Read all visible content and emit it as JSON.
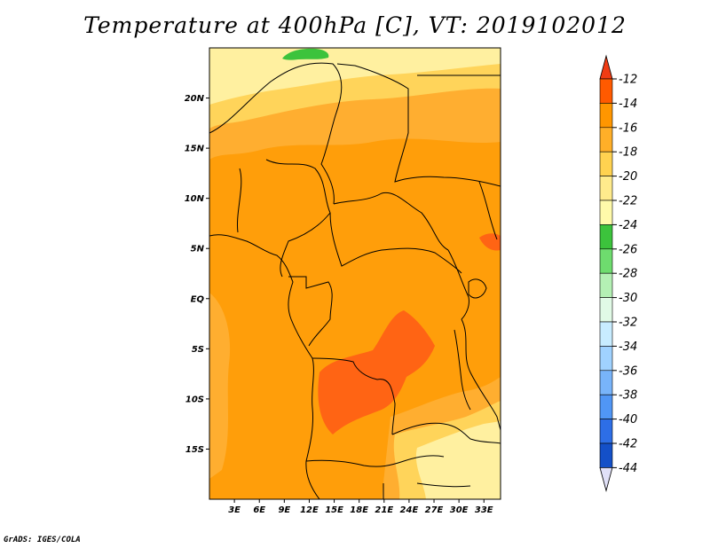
{
  "title": "Temperature at 400hPa [C], VT: 2019102012",
  "credit": "GrADS: IGES/COLA",
  "map": {
    "lon_range": [
      0,
      35
    ],
    "lat_range": [
      -20,
      25
    ],
    "lat_ticks": [
      {
        "value": 20,
        "label": "20N"
      },
      {
        "value": 15,
        "label": "15N"
      },
      {
        "value": 10,
        "label": "10N"
      },
      {
        "value": 5,
        "label": "5N"
      },
      {
        "value": 0,
        "label": "EQ"
      },
      {
        "value": -5,
        "label": "5S"
      },
      {
        "value": -10,
        "label": "10S"
      },
      {
        "value": -15,
        "label": "15S"
      }
    ],
    "lon_ticks": [
      {
        "value": 3,
        "label": "3E"
      },
      {
        "value": 6,
        "label": "6E"
      },
      {
        "value": 9,
        "label": "9E"
      },
      {
        "value": 12,
        "label": "12E"
      },
      {
        "value": 15,
        "label": "15E"
      },
      {
        "value": 18,
        "label": "18E"
      },
      {
        "value": 21,
        "label": "21E"
      },
      {
        "value": 24,
        "label": "24E"
      },
      {
        "value": 27,
        "label": "27E"
      },
      {
        "value": 30,
        "label": "30E"
      },
      {
        "value": 33,
        "label": "33E"
      }
    ]
  },
  "colorbar": {
    "levels": [
      {
        "label": "-12",
        "color": "#ff5a00"
      },
      {
        "label": "-14",
        "color": "#ff9600"
      },
      {
        "label": "-16",
        "color": "#ffaf28"
      },
      {
        "label": "-18",
        "color": "#ffd250"
      },
      {
        "label": "-20",
        "color": "#ffeb8c"
      },
      {
        "label": "-22",
        "color": "#fffaaa"
      },
      {
        "label": "-24",
        "color": "#3cc33c"
      },
      {
        "label": "-26",
        "color": "#6edc6e"
      },
      {
        "label": "-28",
        "color": "#b4f0b4"
      },
      {
        "label": "-30",
        "color": "#e1fae6"
      },
      {
        "label": "-32",
        "color": "#c8ecff"
      },
      {
        "label": "-34",
        "color": "#a0d2ff"
      },
      {
        "label": "-36",
        "color": "#78b4fa"
      },
      {
        "label": "-38",
        "color": "#5096f5"
      },
      {
        "label": "-40",
        "color": "#2d6ee6"
      },
      {
        "label": "-42",
        "color": "#1450c8"
      },
      {
        "label": "-44",
        "color": "#0a1e78"
      }
    ],
    "top_color": "#f03c14",
    "bottom_color": "#e1e1f8"
  },
  "fields": {
    "base_color": "#ff9e0a",
    "warm_color": "#ff6414",
    "mid_color": "#ffae30",
    "light_color": "#ffd45a",
    "pale_color": "#fff0a0",
    "green_color": "#3cc33c"
  }
}
